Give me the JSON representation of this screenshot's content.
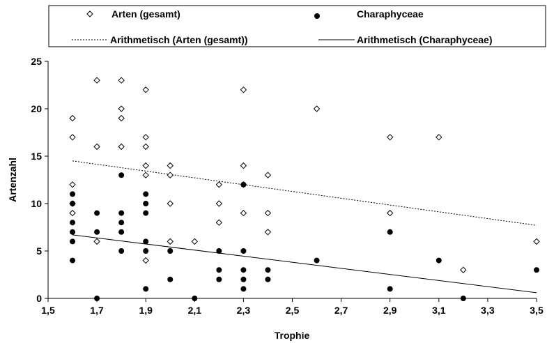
{
  "chart_data": {
    "type": "scatter",
    "xlabel": "Trophie",
    "ylabel": "Artenzahl",
    "xlim": [
      1.5,
      3.5
    ],
    "ylim": [
      0,
      25
    ],
    "x_ticks": [
      "1,5",
      "1,7",
      "1,9",
      "2,1",
      "2,3",
      "2,5",
      "2,7",
      "2,9",
      "3,1",
      "3,3",
      "3,5"
    ],
    "y_ticks": [
      "0",
      "5",
      "10",
      "15",
      "20",
      "25"
    ],
    "grid": false,
    "legend_position": "top",
    "legend": {
      "series_a": "Arten (gesamt)",
      "series_b": "Charaphyceae",
      "trend_a": "Arithmetisch (Arten (gesamt))",
      "trend_b": "Arithmetisch (Charaphyceae)"
    },
    "series": [
      {
        "name": "Arten (gesamt)",
        "marker": "open-diamond",
        "points": [
          [
            1.6,
            19
          ],
          [
            1.6,
            17
          ],
          [
            1.6,
            12
          ],
          [
            1.6,
            10
          ],
          [
            1.6,
            9
          ],
          [
            1.7,
            23
          ],
          [
            1.7,
            16
          ],
          [
            1.7,
            6
          ],
          [
            1.8,
            23
          ],
          [
            1.8,
            20
          ],
          [
            1.8,
            19
          ],
          [
            1.8,
            16
          ],
          [
            1.9,
            22
          ],
          [
            1.9,
            17
          ],
          [
            1.9,
            16
          ],
          [
            1.9,
            14
          ],
          [
            1.9,
            13
          ],
          [
            1.9,
            4
          ],
          [
            2.0,
            14
          ],
          [
            2.0,
            13
          ],
          [
            2.0,
            10
          ],
          [
            2.0,
            6
          ],
          [
            2.1,
            6
          ],
          [
            2.2,
            12
          ],
          [
            2.2,
            10
          ],
          [
            2.2,
            8
          ],
          [
            2.3,
            22
          ],
          [
            2.3,
            14
          ],
          [
            2.3,
            12
          ],
          [
            2.3,
            9
          ],
          [
            2.4,
            13
          ],
          [
            2.4,
            9
          ],
          [
            2.4,
            7
          ],
          [
            2.6,
            20
          ],
          [
            2.9,
            17
          ],
          [
            2.9,
            9
          ],
          [
            3.1,
            17
          ],
          [
            3.2,
            3
          ],
          [
            3.5,
            6
          ]
        ]
      },
      {
        "name": "Charaphyceae",
        "marker": "filled-circle",
        "points": [
          [
            1.6,
            11
          ],
          [
            1.6,
            10
          ],
          [
            1.6,
            8
          ],
          [
            1.6,
            7
          ],
          [
            1.6,
            6
          ],
          [
            1.6,
            4
          ],
          [
            1.7,
            9
          ],
          [
            1.7,
            7
          ],
          [
            1.7,
            0
          ],
          [
            1.8,
            13
          ],
          [
            1.8,
            9
          ],
          [
            1.8,
            8
          ],
          [
            1.8,
            7
          ],
          [
            1.8,
            5
          ],
          [
            1.9,
            11
          ],
          [
            1.9,
            10
          ],
          [
            1.9,
            9
          ],
          [
            1.9,
            6
          ],
          [
            1.9,
            5
          ],
          [
            1.9,
            1
          ],
          [
            2.0,
            5
          ],
          [
            2.0,
            2
          ],
          [
            2.1,
            0
          ],
          [
            2.2,
            5
          ],
          [
            2.2,
            3
          ],
          [
            2.2,
            2
          ],
          [
            2.3,
            12
          ],
          [
            2.3,
            5
          ],
          [
            2.3,
            3
          ],
          [
            2.3,
            2
          ],
          [
            2.3,
            1
          ],
          [
            2.4,
            3
          ],
          [
            2.4,
            2
          ],
          [
            2.6,
            4
          ],
          [
            2.9,
            7
          ],
          [
            2.9,
            1
          ],
          [
            3.1,
            4
          ],
          [
            3.2,
            0
          ],
          [
            3.5,
            3
          ]
        ]
      }
    ],
    "trendlines": [
      {
        "name": "Arithmetisch (Arten (gesamt))",
        "style": "dotted",
        "x": [
          1.6,
          3.5
        ],
        "y": [
          14.5,
          7.7
        ]
      },
      {
        "name": "Arithmetisch (Charaphyceae)",
        "style": "solid",
        "x": [
          1.6,
          3.5
        ],
        "y": [
          6.7,
          0.6
        ]
      }
    ],
    "colors": {
      "marker": "#000000",
      "background": "#ffffff"
    }
  }
}
